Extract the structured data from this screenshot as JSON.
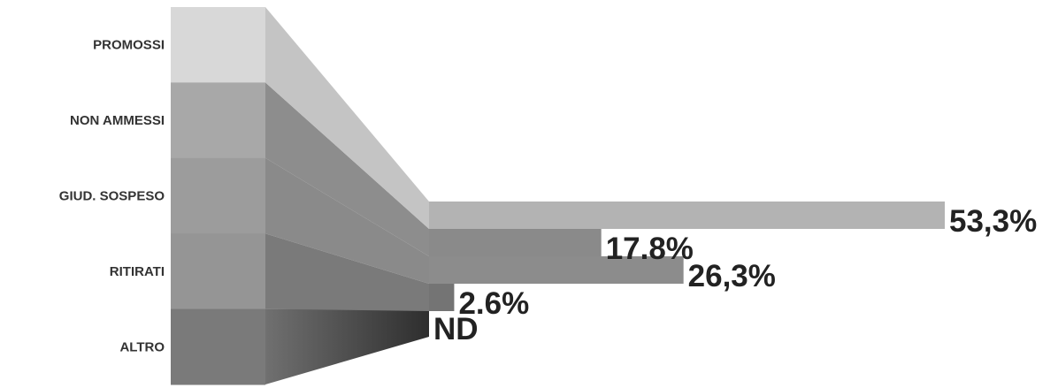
{
  "chart_data": {
    "type": "bar",
    "categories": [
      "PROMOSSI",
      "NON AMMESSI",
      "GIUD. SOSPESO",
      "RITIRATI",
      "ALTRO"
    ],
    "series": [
      {
        "values": [
          53.3,
          17.8,
          26.3,
          2.6,
          0
        ],
        "labels": [
          "53,3%",
          "17.8%",
          "26,3%",
          "2.6%",
          "ND"
        ]
      }
    ],
    "xlim": [
      0,
      100
    ],
    "grid": false,
    "legend": "none",
    "colors": {
      "funnel_blocks": [
        "#d8d8d8",
        "#a8a8a8",
        "#9c9c9c",
        "#959595",
        "#7a7a7a"
      ],
      "funnel_fans": [
        "#c4c4c4",
        "#8d8d8d",
        "#8a8a8a",
        "#7a7a7a",
        "#3a3a3a"
      ],
      "bars": [
        "#b3b3b3",
        "#8a8a8a",
        "#8c8c8c",
        "#747474",
        "#5a5a5a"
      ]
    }
  }
}
